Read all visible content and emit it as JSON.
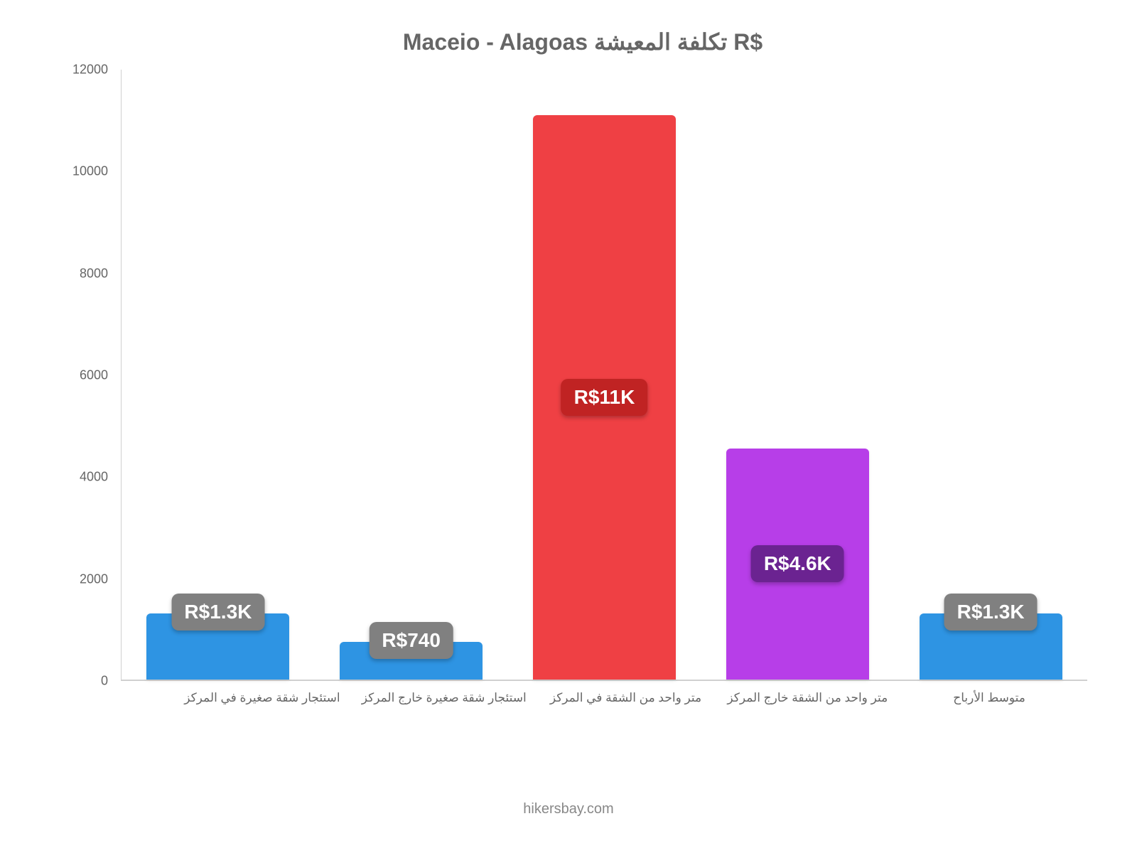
{
  "chart": {
    "type": "bar",
    "title": "Maceio - Alagoas تكلفة المعيشة R$",
    "title_fontsize": 32,
    "title_color": "#666666",
    "background_color": "#ffffff",
    "ylim": [
      0,
      12000
    ],
    "ytick_step": 2000,
    "y_ticks": [
      "0",
      "2000",
      "4000",
      "6000",
      "8000",
      "10000",
      "12000"
    ],
    "axis_line_color": "#d0d0d0",
    "x_label_fontsize": 17,
    "x_label_color": "#666666",
    "y_label_fontsize": 18,
    "y_label_color": "#666666",
    "bar_width_ratio": 0.74,
    "bar_border_radius": 6,
    "bars": [
      {
        "category": "استئجار شقة صغيرة في المركز",
        "value": 1300,
        "value_label": "R$1.3K",
        "bar_color": "#2e94e3",
        "label_bg_color": "#808080",
        "label_text_color": "#ffffff",
        "label_y_offset_mode": "above-bar"
      },
      {
        "category": "استئجار شقة صغيرة خارج المركز",
        "value": 740,
        "value_label": "R$740",
        "bar_color": "#2e94e3",
        "label_bg_color": "#808080",
        "label_text_color": "#ffffff",
        "label_y_offset_mode": "above-bar"
      },
      {
        "category": "متر واحد من الشقة في المركز",
        "value": 11100,
        "value_label": "R$11K",
        "bar_color": "#ef4044",
        "label_bg_color": "#c02323",
        "label_text_color": "#ffffff",
        "label_y_offset_mode": "mid"
      },
      {
        "category": "متر واحد من الشقة خارج المركز",
        "value": 4550,
        "value_label": "R$4.6K",
        "bar_color": "#b73ee8",
        "label_bg_color": "#6b2391",
        "label_text_color": "#ffffff",
        "label_y_offset_mode": "mid"
      },
      {
        "category": "متوسط الأرباح",
        "value": 1300,
        "value_label": "R$1.3K",
        "bar_color": "#2e94e3",
        "label_bg_color": "#808080",
        "label_text_color": "#ffffff",
        "label_y_offset_mode": "above-bar"
      }
    ],
    "footer": "hikersbay.com",
    "footer_color": "#888888",
    "footer_fontsize": 20
  }
}
